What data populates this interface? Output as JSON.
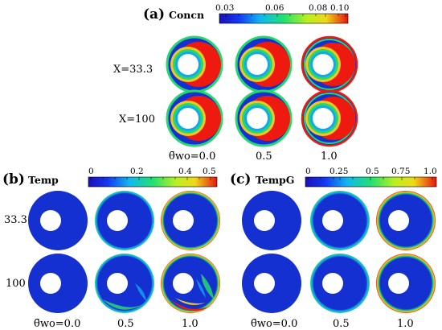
{
  "figure": {
    "panel_a": {
      "letter": "(a)",
      "title": "Concn",
      "colorbar_ticks": [
        "0.03",
        "0.06",
        "0.08",
        "0.10"
      ],
      "rows": [
        "X=33.3",
        "X=100"
      ],
      "columns": [
        "θ̄wo=0.0",
        "0.5",
        "1.0"
      ]
    },
    "panel_b": {
      "letter": "(b)",
      "title": "Temp",
      "colorbar_ticks": [
        "0",
        "0.2",
        "0.4",
        "0.5"
      ],
      "rows": [
        "33.3",
        "100"
      ],
      "columns": [
        "θ̄wo=0.0",
        "0.5",
        "1.0"
      ]
    },
    "panel_c": {
      "letter": "(c)",
      "title": "TempG",
      "colorbar_ticks": [
        "0",
        "0.25",
        "0.5",
        "0.75",
        "1.0"
      ],
      "columns": [
        "θ̄wo=0.0",
        "0.5",
        "1.0"
      ]
    }
  },
  "colors": {
    "field_background": "#1530d0",
    "hot": "#ee1a10",
    "warm": "#f0e020",
    "mid": "#24d870",
    "cool": "#12a8f0"
  }
}
